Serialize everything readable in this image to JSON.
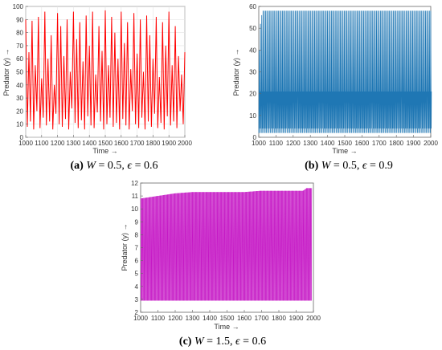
{
  "chart_data": [
    {
      "type": "line",
      "caption": {
        "tag": "(a)",
        "param1": "W",
        "eq1": " = 0.5, ",
        "param2": "ϵ",
        "eq2": " = 0.6"
      },
      "xlabel": "Time →",
      "ylabel": "Predator (y) →",
      "xlim": [
        1000,
        2000
      ],
      "ylim": [
        0,
        100
      ],
      "x_ticks": [
        1000,
        1100,
        1200,
        1300,
        1400,
        1500,
        1600,
        1700,
        1800,
        1900,
        2000
      ],
      "y_ticks": [
        0,
        10,
        20,
        30,
        40,
        50,
        60,
        70,
        80,
        90,
        100
      ],
      "grid": true,
      "color": "#ff0000",
      "behavior": "chaotic oscillation",
      "y_range_observed": [
        5,
        97
      ],
      "series": [
        {
          "x": [
            1000,
            1010,
            1020,
            1030,
            1040,
            1050,
            1060,
            1070,
            1080,
            1090,
            1100,
            1110,
            1120,
            1130,
            1140,
            1150,
            1160,
            1170,
            1180,
            1190,
            1200,
            1210,
            1220,
            1230,
            1240,
            1250,
            1260,
            1270,
            1280,
            1290,
            1300,
            1310,
            1320,
            1330,
            1340,
            1350,
            1360,
            1370,
            1380,
            1390,
            1400,
            1410,
            1420,
            1430,
            1440,
            1450,
            1460,
            1470,
            1480,
            1490,
            1500,
            1510,
            1520,
            1530,
            1540,
            1550,
            1560,
            1570,
            1580,
            1590,
            1600,
            1610,
            1620,
            1630,
            1640,
            1650,
            1660,
            1670,
            1680,
            1690,
            1700,
            1710,
            1720,
            1730,
            1740,
            1750,
            1760,
            1770,
            1780,
            1790,
            1800,
            1810,
            1820,
            1830,
            1840,
            1850,
            1860,
            1870,
            1880,
            1890,
            1900,
            1910,
            1920,
            1930,
            1940,
            1950,
            1960,
            1970,
            1980,
            1990,
            2000
          ],
          "y": [
            90,
            8,
            65,
            12,
            89,
            6,
            55,
            20,
            92,
            7,
            45,
            15,
            96,
            9,
            60,
            12,
            78,
            6,
            40,
            18,
            95,
            10,
            85,
            8,
            62,
            14,
            90,
            6,
            50,
            22,
            96,
            11,
            75,
            7,
            88,
            13,
            58,
            6,
            93,
            16,
            70,
            9,
            96,
            7,
            48,
            19,
            85,
            12,
            66,
            6,
            97,
            10,
            55,
            15,
            92,
            8,
            80,
            11,
            60,
            6,
            96,
            14,
            72,
            9,
            88,
            6,
            52,
            20,
            95,
            10,
            64,
            7,
            90,
            15,
            50,
            6,
            93,
            12,
            78,
            8,
            60,
            18,
            92,
            7,
            46,
            11,
            88,
            6,
            70,
            16,
            96,
            9,
            55,
            12,
            85,
            7,
            62,
            20,
            48,
            10,
            65
          ]
        }
      ]
    },
    {
      "type": "line",
      "caption": {
        "tag": "(b)",
        "param1": "W",
        "eq1": " = 0.5, ",
        "param2": "ϵ",
        "eq2": " = 0.9"
      },
      "xlabel": "Time →",
      "ylabel": "Predator (y) →",
      "xlim": [
        1000,
        2000
      ],
      "ylim": [
        0,
        60
      ],
      "x_ticks": [
        1000,
        1100,
        1200,
        1300,
        1400,
        1500,
        1600,
        1700,
        1800,
        1900,
        2000
      ],
      "y_ticks": [
        0,
        10,
        20,
        30,
        40,
        50,
        60
      ],
      "grid": false,
      "color": "#1f77b4",
      "behavior": "periodic oscillation",
      "peak_values": [
        40,
        52,
        56,
        58,
        58
      ],
      "secondary_band": [
        2,
        22
      ],
      "y_range_observed": [
        2,
        58
      ]
    },
    {
      "type": "line",
      "caption": {
        "tag": "(c)",
        "param1": "W",
        "eq1": " = 1.5, ",
        "param2": "ϵ",
        "eq2": " = 0.6"
      },
      "xlabel": "Time →",
      "ylabel": "Predator (y) →",
      "xlim": [
        1000,
        2000
      ],
      "ylim": [
        2,
        12
      ],
      "x_ticks": [
        1000,
        1100,
        1200,
        1300,
        1400,
        1500,
        1600,
        1700,
        1800,
        1900,
        2000
      ],
      "y_ticks": [
        2,
        3,
        4,
        5,
        6,
        7,
        8,
        9,
        10,
        11,
        12
      ],
      "grid": false,
      "color": "#c000c0",
      "behavior": "dense periodic oscillation",
      "upper_envelope": [
        [
          1000,
          10.8
        ],
        [
          1100,
          11.0
        ],
        [
          1200,
          11.2
        ],
        [
          1300,
          11.3
        ],
        [
          1600,
          11.3
        ],
        [
          1700,
          11.4
        ],
        [
          1940,
          11.4
        ],
        [
          1960,
          11.6
        ],
        [
          1990,
          11.6
        ]
      ],
      "lower_envelope": [
        [
          1000,
          2.9
        ],
        [
          2000,
          2.9
        ]
      ]
    }
  ]
}
